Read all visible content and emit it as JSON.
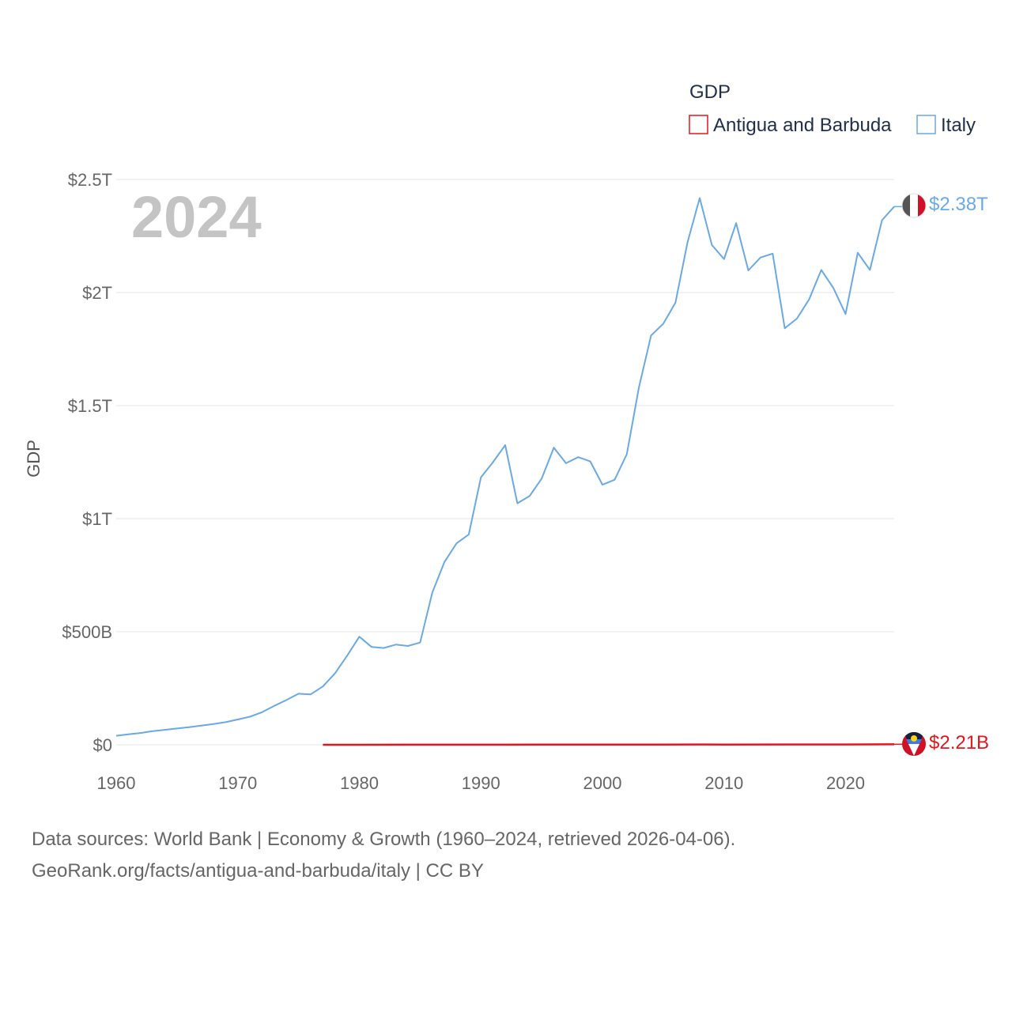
{
  "chart_data": {
    "type": "line",
    "year_label": "2024",
    "ylabel": "GDP",
    "xlim": [
      1960,
      2024
    ],
    "ylim": [
      0,
      2500000000000
    ],
    "x_ticks": [
      1960,
      1970,
      1980,
      1990,
      2000,
      2010,
      2020
    ],
    "y_ticks": [
      {
        "value": 0,
        "label": "$0"
      },
      {
        "value": 500000000000,
        "label": "$500B"
      },
      {
        "value": 1000000000000,
        "label": "$1T"
      },
      {
        "value": 1500000000000,
        "label": "$1.5T"
      },
      {
        "value": 2000000000000,
        "label": "$2T"
      },
      {
        "value": 2500000000000,
        "label": "$2.5T"
      }
    ],
    "legend": {
      "title": "GDP",
      "entries": [
        {
          "name": "Antigua and Barbuda",
          "color": "#e8141c"
        },
        {
          "name": "Italy",
          "color": "#6aa9e4"
        }
      ]
    },
    "series": [
      {
        "name": "Italy",
        "color": "#6aa9e4",
        "end_label": "$2.38T",
        "x": [
          1960,
          1961,
          1962,
          1963,
          1964,
          1965,
          1966,
          1967,
          1968,
          1969,
          1970,
          1971,
          1972,
          1973,
          1974,
          1975,
          1976,
          1977,
          1978,
          1979,
          1980,
          1981,
          1982,
          1983,
          1984,
          1985,
          1986,
          1987,
          1988,
          1989,
          1990,
          1991,
          1992,
          1993,
          1994,
          1995,
          1996,
          1997,
          1998,
          1999,
          2000,
          2001,
          2002,
          2003,
          2004,
          2005,
          2006,
          2007,
          2008,
          2009,
          2010,
          2011,
          2012,
          2013,
          2014,
          2015,
          2016,
          2017,
          2018,
          2019,
          2020,
          2021,
          2022,
          2023,
          2024
        ],
        "values": [
          40,
          46,
          52,
          60,
          66,
          72,
          78,
          85,
          92,
          100,
          112,
          124,
          144,
          172,
          198,
          226,
          223,
          258,
          316,
          394,
          478,
          433,
          428,
          443,
          437,
          452,
          673,
          808,
          891,
          930,
          1183,
          1250,
          1325,
          1068,
          1100,
          1177,
          1314,
          1245,
          1272,
          1253,
          1150,
          1172,
          1285,
          1580,
          1810,
          1862,
          1955,
          2222,
          2418,
          2210,
          2148,
          2307,
          2098,
          2155,
          2172,
          1842,
          1885,
          1970,
          2100,
          2020,
          1905,
          2176,
          2100,
          2320,
          2380
        ],
        "value_unit": "billion USD"
      },
      {
        "name": "Antigua and Barbuda",
        "color": "#e8141c",
        "end_label": "$2.21B",
        "x": [
          1977,
          1980,
          1985,
          1990,
          1995,
          2000,
          2005,
          2008,
          2010,
          2015,
          2020,
          2024
        ],
        "values": [
          0.08,
          0.13,
          0.29,
          0.46,
          0.59,
          0.83,
          1.06,
          1.35,
          1.15,
          1.39,
          1.42,
          2.21
        ],
        "value_unit": "billion USD"
      }
    ]
  },
  "source": {
    "line1": "Data sources: World Bank | Economy & Growth (1960–2024, retrieved 2026-04-06).",
    "line2": "GeoRank.org/facts/antigua-and-barbuda/italy | CC BY"
  }
}
